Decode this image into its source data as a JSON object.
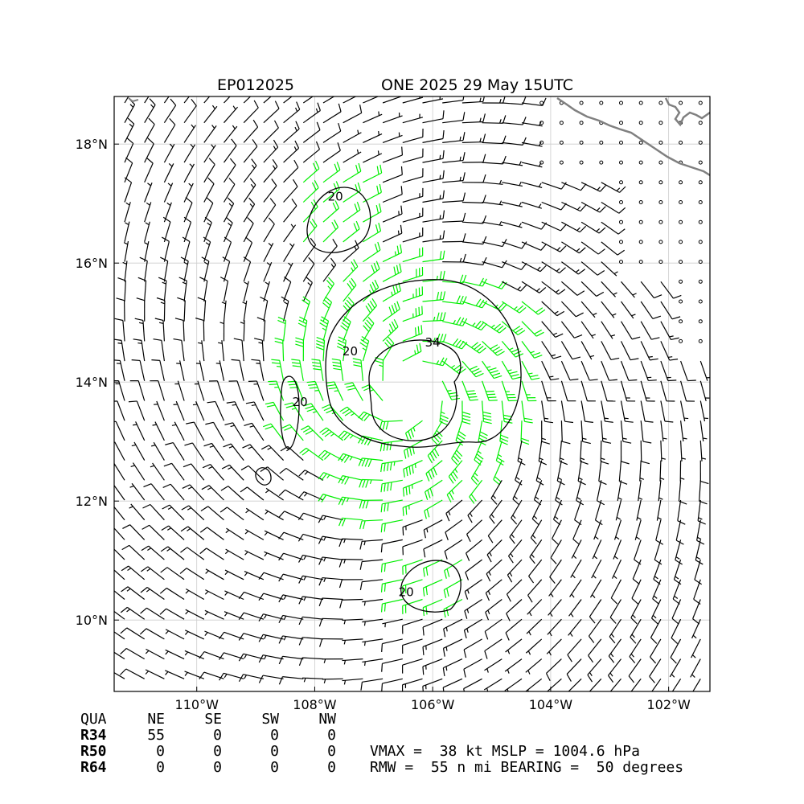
{
  "title": {
    "storm_id": "EP012025",
    "name_time": "ONE 2025 29 May 15UTC"
  },
  "map": {
    "lon_range": [
      -111.4,
      -101.3
    ],
    "lat_range": [
      8.8,
      18.8
    ],
    "lon_ticks": [
      {
        "value": -110,
        "label": "110°W"
      },
      {
        "value": -108,
        "label": "108°W"
      },
      {
        "value": -106,
        "label": "106°W"
      },
      {
        "value": -104,
        "label": "104°W"
      },
      {
        "value": -102,
        "label": "102°W"
      }
    ],
    "lat_ticks": [
      {
        "value": 10,
        "label": "10°N"
      },
      {
        "value": 12,
        "label": "12°N"
      },
      {
        "value": 14,
        "label": "14°N"
      },
      {
        "value": 16,
        "label": "16°N"
      },
      {
        "value": 18,
        "label": "18°N"
      }
    ],
    "grid": true,
    "center": {
      "lon": -106.4,
      "lat": 13.9
    },
    "colors": {
      "barb": "#000000",
      "barb_strong": "#00ee00",
      "coast": "#808080",
      "grid": "#cccccc",
      "contour": "#000000"
    },
    "contour_labels": [
      {
        "text": "34",
        "lon": -106.0,
        "lat": 14.6
      },
      {
        "text": "20",
        "lon": -107.4,
        "lat": 14.45
      },
      {
        "text": "20",
        "lon": -107.65,
        "lat": 17.05
      },
      {
        "text": "20",
        "lon": -108.25,
        "lat": 13.6
      },
      {
        "text": "20",
        "lon": -106.45,
        "lat": 10.4
      }
    ]
  },
  "radii_table": {
    "header": [
      "QUA",
      "NE",
      "SE",
      "SW",
      "NW"
    ],
    "rows": [
      {
        "label": "R34",
        "values": [
          "55",
          "0",
          "0",
          "0"
        ]
      },
      {
        "label": "R50",
        "values": [
          "0",
          "0",
          "0",
          "0"
        ]
      },
      {
        "label": "R64",
        "values": [
          "0",
          "0",
          "0",
          "0"
        ]
      }
    ]
  },
  "summary": {
    "line1": "VMAX =  38 kt MSLP = 1004.6 hPa",
    "line2": "RMW =  55 n mi BEARING =  50 degrees"
  }
}
